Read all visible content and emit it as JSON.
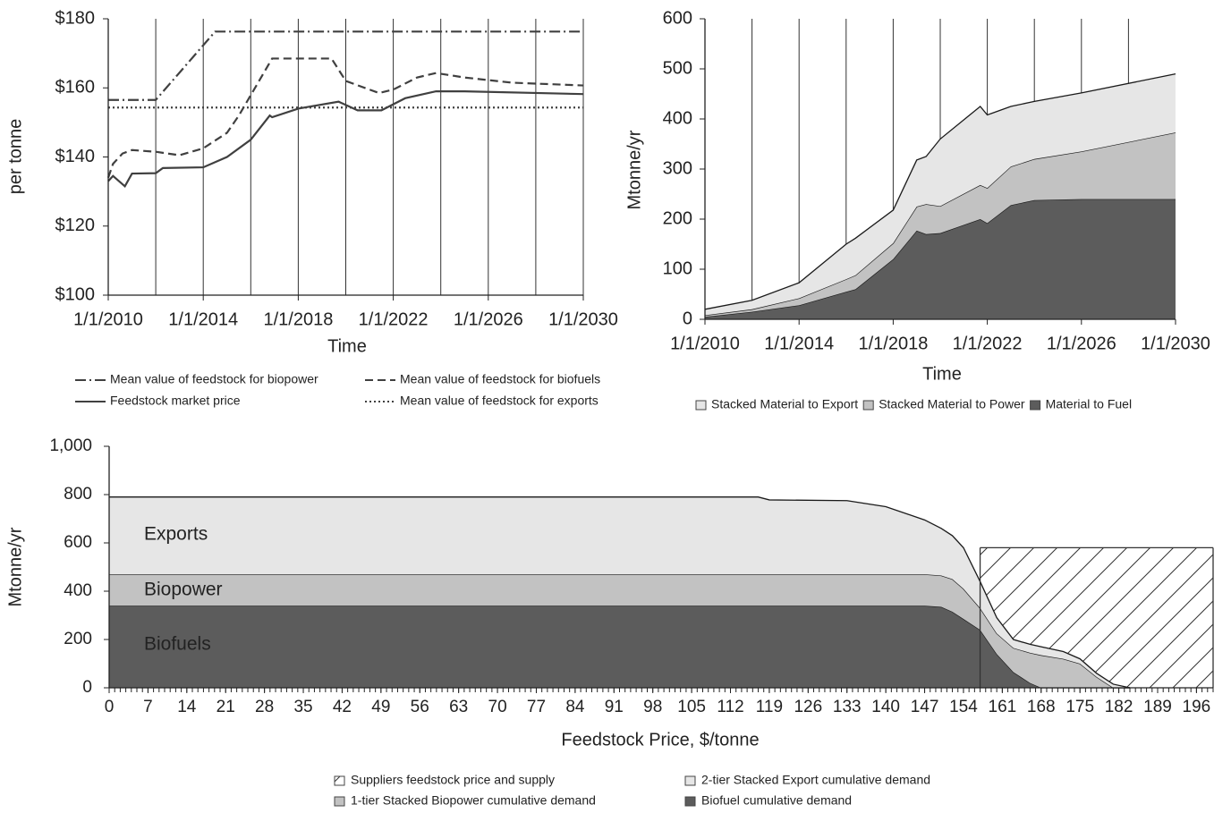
{
  "chart_data": [
    {
      "type": "line",
      "ylabel": "per tonne",
      "xlabel": "Time",
      "xlim": [
        2010,
        2030
      ],
      "ylim": [
        100,
        180
      ],
      "xticks": [
        {
          "value": 2010,
          "label": "1/1/2010"
        },
        {
          "value": 2014,
          "label": "1/1/2014"
        },
        {
          "value": 2018,
          "label": "1/1/2018"
        },
        {
          "value": 2022,
          "label": "1/1/2022"
        },
        {
          "value": 2026,
          "label": "1/1/2026"
        },
        {
          "value": 2030,
          "label": "1/1/2030"
        }
      ],
      "xgrid": [
        2012,
        2014,
        2016,
        2018,
        2020,
        2022,
        2024,
        2026,
        2028,
        2030
      ],
      "yticks": [
        {
          "value": 100,
          "label": "$100"
        },
        {
          "value": 120,
          "label": "$120"
        },
        {
          "value": 140,
          "label": "$140"
        },
        {
          "value": 160,
          "label": "$160"
        },
        {
          "value": 180,
          "label": "$180"
        }
      ],
      "series": [
        {
          "name": "Mean value of feedstock for biopower",
          "color": "#404040",
          "style": "dashdot",
          "x": [
            2010,
            2012,
            2014.5,
            2030
          ],
          "values": [
            156.5,
            156.5,
            176.3,
            176.3
          ]
        },
        {
          "name": "Mean value of feedstock for biofuels",
          "color": "#404040",
          "style": "dashed",
          "x": [
            2010,
            2010.2,
            2010.6,
            2011,
            2012,
            2013,
            2014,
            2015,
            2015.5,
            2016.9,
            2019.4,
            2020,
            2021.4,
            2022,
            2023,
            2023.8,
            2025,
            2027,
            2030
          ],
          "values": [
            134,
            138,
            141,
            142,
            141.5,
            140.5,
            142.5,
            147,
            152,
            168.5,
            168.5,
            162,
            158.5,
            159.5,
            163,
            164.3,
            163,
            161.5,
            160.7
          ]
        },
        {
          "name": "Feedstock market price",
          "color": "#404040",
          "style": "solid",
          "x": [
            2010,
            2010.2,
            2010.7,
            2011,
            2012,
            2012.3,
            2014,
            2015,
            2016,
            2016.8,
            2016.9,
            2018,
            2019.7,
            2020.5,
            2021.5,
            2022.5,
            2023.8,
            2025,
            2030
          ],
          "values": [
            133,
            134.5,
            131.5,
            135.2,
            135.3,
            136.8,
            137,
            140,
            145,
            152,
            151.5,
            154,
            156,
            153.5,
            153.5,
            157,
            159,
            159,
            158.2
          ]
        },
        {
          "name": "Mean value of feedstock for exports",
          "color": "#404040",
          "style": "dotted",
          "x": [
            2010,
            2030
          ],
          "values": [
            154.3,
            154.3
          ]
        }
      ]
    },
    {
      "type": "area",
      "ylabel": "Mtonne/yr",
      "xlabel": "Time",
      "xlim": [
        2010,
        2030
      ],
      "ylim": [
        0,
        600
      ],
      "xticks": [
        {
          "value": 2010,
          "label": "1/1/2010"
        },
        {
          "value": 2014,
          "label": "1/1/2014"
        },
        {
          "value": 2018,
          "label": "1/1/2018"
        },
        {
          "value": 2022,
          "label": "1/1/2022"
        },
        {
          "value": 2026,
          "label": "1/1/2026"
        },
        {
          "value": 2030,
          "label": "1/1/2030"
        }
      ],
      "xgrid": [
        2012,
        2014,
        2016,
        2018,
        2020,
        2022,
        2024,
        2026,
        2028
      ],
      "yticks": [
        0,
        100,
        200,
        300,
        400,
        500,
        600
      ],
      "x": [
        2010,
        2012,
        2014,
        2016,
        2016.4,
        2018,
        2019,
        2019.4,
        2020,
        2021.7,
        2022,
        2023,
        2024,
        2026,
        2030
      ],
      "series": [
        {
          "name": "Stacked Material to Export",
          "color": "#e6e6e6",
          "values": [
            12,
            18,
            31,
            70,
            74,
            66,
            93,
            95,
            134,
            157,
            146,
            120,
            115,
            117,
            117
          ]
        },
        {
          "name": "Stacked Material to Power",
          "color": "#c2c2c2",
          "values": [
            3,
            5,
            14,
            25,
            28,
            32,
            48,
            60,
            54,
            68,
            70,
            77,
            82,
            95,
            133
          ]
        },
        {
          "name": "Material to Fuel",
          "color": "#5c5c5c",
          "values": [
            5,
            15,
            28,
            55,
            60,
            120,
            177,
            170,
            172,
            200,
            192,
            228,
            238,
            240,
            240
          ]
        }
      ]
    },
    {
      "type": "area",
      "ylabel": "Mtonne/yr",
      "xlabel": "Feedstock Price, $/tonne",
      "xlim": [
        0,
        199
      ],
      "ylim": [
        0,
        1000
      ],
      "xminor": 1,
      "xticks": [
        0,
        7,
        14,
        21,
        28,
        35,
        42,
        49,
        56,
        63,
        70,
        77,
        84,
        91,
        98,
        105,
        112,
        119,
        126,
        133,
        140,
        147,
        154,
        161,
        168,
        175,
        182,
        189,
        196
      ],
      "yticks": [
        0,
        200,
        400,
        600,
        800,
        {
          "value": 1000,
          "label": "1,000"
        }
      ],
      "annotations": [
        "Exports",
        "Biopower",
        "Biofuels"
      ],
      "x": [
        0,
        117,
        119,
        133,
        140,
        147,
        150,
        152,
        154,
        157,
        160,
        163,
        166,
        168,
        172,
        175,
        178,
        181,
        184
      ],
      "series": [
        {
          "name": "Suppliers feedstock price and supply",
          "color": "#333333",
          "pattern": "hatch",
          "x": [
            157,
            199
          ],
          "values": [
            580,
            580
          ]
        },
        {
          "name": "2-tier Stacked Export cumulative demand",
          "color": "#e6e6e6",
          "values": [
            320,
            320,
            308,
            305,
            280,
            225,
            195,
            180,
            170,
            110,
            65,
            35,
            35,
            35,
            30,
            20,
            15,
            15,
            0
          ]
        },
        {
          "name": "1-tier Stacked Biopower cumulative demand",
          "color": "#c2c2c2",
          "values": [
            130,
            130,
            130,
            130,
            130,
            130,
            130,
            135,
            125,
            90,
            85,
            100,
            125,
            135,
            120,
            100,
            45,
            0,
            0
          ]
        },
        {
          "name": "Biofuel cumulative demand",
          "color": "#5c5c5c",
          "values": [
            340,
            340,
            340,
            340,
            340,
            340,
            335,
            315,
            285,
            240,
            140,
            65,
            20,
            0,
            0,
            0,
            0,
            0,
            0
          ]
        }
      ]
    }
  ]
}
